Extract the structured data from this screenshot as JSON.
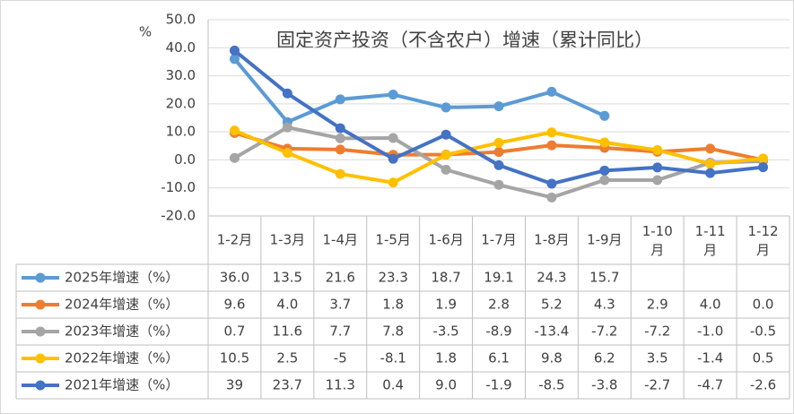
{
  "chart_data": {
    "type": "line",
    "title": "固定资产投资（不含农户）增速（累计同比）",
    "y_unit": "%",
    "categories": [
      "1-2月",
      "1-3月",
      "1-4月",
      "1-5月",
      "1-6月",
      "1-7月",
      "1-8月",
      "1-9月",
      "1-10月",
      "1-11月",
      "1-12月"
    ],
    "ylim": [
      -20,
      50
    ],
    "yticks": [
      {
        "value": -20,
        "label": "-20.0"
      },
      {
        "value": -10,
        "label": "-10.0"
      },
      {
        "value": 0,
        "label": "0.0"
      },
      {
        "value": 10,
        "label": "10.0"
      },
      {
        "value": 20,
        "label": "20.0"
      },
      {
        "value": 30,
        "label": "30.0"
      },
      {
        "value": 40,
        "label": "40.0"
      },
      {
        "value": 50,
        "label": "50.0"
      }
    ],
    "grid": true,
    "series": [
      {
        "name": "2025年增速（%）",
        "color": "#5b9bd5",
        "values": [
          36,
          13.5,
          21.6,
          23.3,
          18.7,
          19.1,
          24.3,
          15.7,
          null,
          null,
          null
        ],
        "value_labels": [
          "36.0",
          "13.5",
          "21.6",
          "23.3",
          "18.7",
          "19.1",
          "24.3",
          "15.7",
          null,
          null,
          null
        ]
      },
      {
        "name": "2024年增速（%）",
        "color": "#ed7d31",
        "values": [
          9.6,
          4,
          3.7,
          1.8,
          1.9,
          2.8,
          5.2,
          4.3,
          2.9,
          4,
          0
        ],
        "value_labels": [
          "9.6",
          "4.0",
          "3.7",
          "1.8",
          "1.9",
          "2.8",
          "5.2",
          "4.3",
          "2.9",
          "4.0",
          "0.0"
        ]
      },
      {
        "name": "2023年增速（%）",
        "color": "#a5a5a5",
        "values": [
          0.7,
          11.6,
          7.7,
          7.8,
          -3.5,
          -8.9,
          -13.4,
          -7.2,
          -7.2,
          -1,
          -0.5
        ],
        "value_labels": [
          "0.7",
          "11.6",
          "7.7",
          "7.8",
          "-3.5",
          "-8.9",
          "-13.4",
          "-7.2",
          "-7.2",
          "-1.0",
          "-0.5"
        ]
      },
      {
        "name": "2022年增速（%）",
        "color": "#ffc000",
        "values": [
          10.5,
          2.5,
          -5,
          -8.1,
          1.8,
          6.1,
          9.8,
          6.2,
          3.5,
          -1.4,
          0.5
        ],
        "value_labels": [
          "10.5",
          "2.5",
          "-5",
          "-8.1",
          "1.8",
          "6.1",
          "9.8",
          "6.2",
          "3.5",
          "-1.4",
          "0.5"
        ]
      },
      {
        "name": "2021年增速（%）",
        "color": "#4472c4",
        "values": [
          39,
          23.7,
          11.3,
          0.4,
          9,
          -1.9,
          -8.5,
          -3.8,
          -2.7,
          -4.7,
          -2.6
        ],
        "value_labels": [
          "39",
          "23.7",
          "11.3",
          "0.4",
          "9.0",
          "-1.9",
          "-8.5",
          "-3.8",
          "-2.7",
          "-4.7",
          "-2.6"
        ]
      }
    ]
  }
}
